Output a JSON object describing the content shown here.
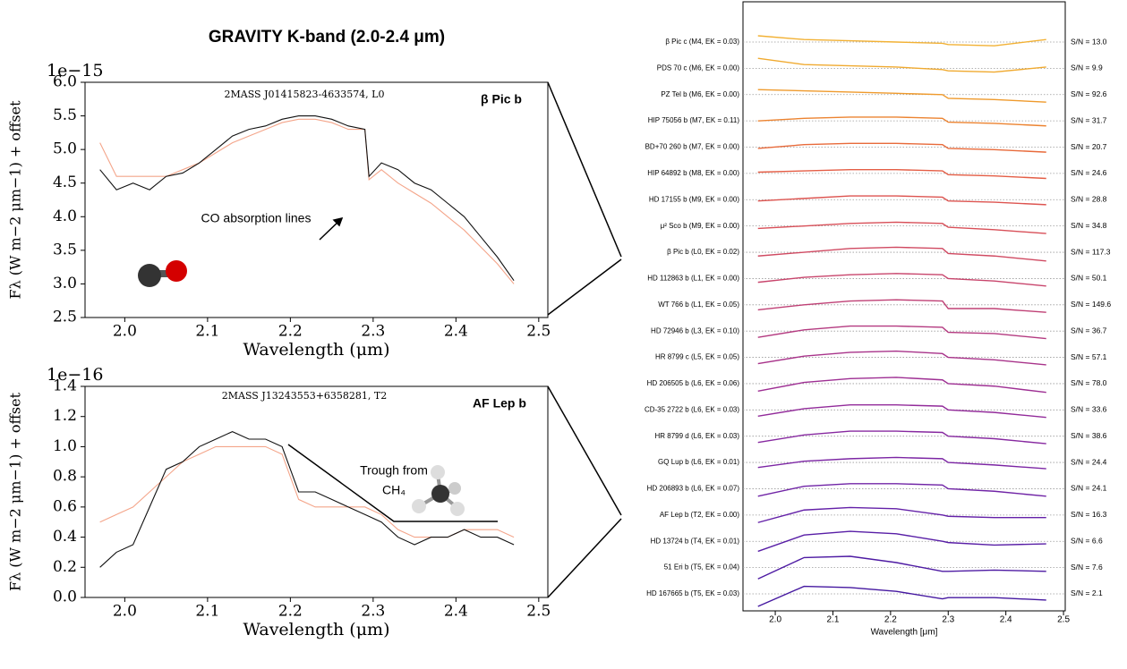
{
  "title": "GRAVITY K-band (2.0-2.4 μm)",
  "chart_data": [
    {
      "type": "line",
      "offset_label": "1e−15",
      "ylabel": "Fλ (W m−2 μm−1) + offset",
      "xlabel": "Wavelength (μm)",
      "object": "β Pic b",
      "subtitle": "2MASS J01415823-4633574, L0",
      "annotations": [
        "CO absorption lines"
      ],
      "xlim": [
        1.952,
        2.511
      ],
      "ylim": [
        2.5,
        6.0
      ],
      "xticks": [
        {
          "value": 2.0,
          "label": "2.0"
        },
        2.1,
        2.2,
        2.3,
        2.4,
        {
          "value": 2.5,
          "label": "2.5"
        }
      ],
      "yticks": [
        2.5,
        {
          "value": 3.0,
          "label": "3.0"
        },
        3.5,
        {
          "value": 4.0,
          "label": "4.0"
        },
        4.5,
        {
          "value": 5.0,
          "label": "5.0"
        },
        5.5,
        {
          "value": 6.0,
          "label": "6.0"
        }
      ],
      "x": [
        1.97,
        1.99,
        2.01,
        2.03,
        2.05,
        2.07,
        2.09,
        2.11,
        2.13,
        2.15,
        2.17,
        2.19,
        2.21,
        2.23,
        2.25,
        2.27,
        2.29,
        2.295,
        2.31,
        2.33,
        2.35,
        2.37,
        2.39,
        2.41,
        2.43,
        2.45,
        2.47
      ],
      "series": [
        {
          "color": "#f4a58a",
          "values": [
            5.1,
            4.6,
            4.6,
            4.6,
            4.6,
            4.7,
            4.8,
            4.95,
            5.1,
            5.2,
            5.3,
            5.4,
            5.45,
            5.45,
            5.4,
            5.3,
            5.3,
            4.55,
            4.7,
            4.5,
            4.35,
            4.2,
            4.0,
            3.8,
            3.55,
            3.3,
            3.0
          ]
        },
        {
          "color": "#111111",
          "values": [
            4.7,
            4.4,
            4.5,
            4.4,
            4.6,
            4.65,
            4.8,
            5.0,
            5.2,
            5.3,
            5.35,
            5.45,
            5.5,
            5.5,
            5.45,
            5.35,
            5.3,
            4.6,
            4.8,
            4.7,
            4.5,
            4.4,
            4.2,
            4.0,
            3.7,
            3.4,
            3.05
          ]
        }
      ]
    },
    {
      "type": "line",
      "offset_label": "1e−16",
      "ylabel": "Fλ (W m−2 μm−1) + offset",
      "xlabel": "Wavelength (μm)",
      "object": "AF Lep b",
      "subtitle": "2MASS J13243553+6358281, T2",
      "annotations": [
        "Trough from",
        "CH₄"
      ],
      "xlim": [
        1.952,
        2.511
      ],
      "ylim": [
        0.0,
        1.4
      ],
      "xticks": [
        {
          "value": 2.0,
          "label": "2.0"
        },
        2.1,
        2.2,
        2.3,
        2.4,
        {
          "value": 2.5,
          "label": "2.5"
        }
      ],
      "yticks": [
        {
          "value": 0.0,
          "label": "0.0"
        },
        0.2,
        0.4,
        0.6,
        0.8,
        {
          "value": 1.0,
          "label": "1.0"
        },
        1.2,
        1.4
      ],
      "x": [
        1.97,
        1.99,
        2.01,
        2.03,
        2.05,
        2.07,
        2.09,
        2.11,
        2.13,
        2.15,
        2.17,
        2.19,
        2.21,
        2.23,
        2.25,
        2.27,
        2.29,
        2.31,
        2.33,
        2.35,
        2.37,
        2.39,
        2.41,
        2.43,
        2.45,
        2.47
      ],
      "series": [
        {
          "color": "#f4a58a",
          "values": [
            0.5,
            0.55,
            0.6,
            0.7,
            0.8,
            0.9,
            0.95,
            1.0,
            1.0,
            1.0,
            1.0,
            0.95,
            0.65,
            0.6,
            0.6,
            0.6,
            0.6,
            0.55,
            0.45,
            0.4,
            0.4,
            0.4,
            0.45,
            0.45,
            0.45,
            0.4
          ]
        },
        {
          "color": "#111111",
          "values": [
            0.2,
            0.3,
            0.35,
            0.6,
            0.85,
            0.9,
            1.0,
            1.05,
            1.1,
            1.05,
            1.05,
            1.0,
            0.7,
            0.7,
            0.65,
            0.6,
            0.55,
            0.5,
            0.4,
            0.35,
            0.4,
            0.4,
            0.45,
            0.4,
            0.4,
            0.35
          ]
        }
      ]
    },
    {
      "type": "ridgeline",
      "xlabel": "Wavelength [μm]",
      "xlim": [
        1.944,
        2.503
      ],
      "xticks": [
        {
          "value": 2.0,
          "label": "2.0"
        },
        2.1,
        2.2,
        2.3,
        2.4,
        {
          "value": 2.5,
          "label": "2.5"
        }
      ],
      "x": [
        1.97,
        2.05,
        2.13,
        2.21,
        2.29,
        2.3,
        2.38,
        2.47
      ],
      "series": [
        {
          "name": "β Pic c (M4, EK = 0.03)",
          "snr": "S/N = 13.0",
          "color": "#f2b134",
          "values": [
            0.5,
            0.2,
            0.1,
            0.0,
            -0.1,
            -0.2,
            -0.3,
            0.2
          ]
        },
        {
          "name": "PDS 70 c (M6, EK = 0.00)",
          "snr": "S/N = 9.9",
          "color": "#f0aa30",
          "values": [
            0.8,
            0.3,
            0.2,
            0.1,
            -0.1,
            -0.2,
            -0.3,
            0.1
          ]
        },
        {
          "name": "PZ Tel b (M6, EK = 0.00)",
          "snr": "S/N = 92.6",
          "color": "#ef9a2c",
          "values": [
            0.4,
            0.3,
            0.2,
            0.1,
            0.0,
            -0.3,
            -0.4,
            -0.6
          ]
        },
        {
          "name": "HIP 75056 b (M7, EK = 0.11)",
          "snr": "S/N = 31.7",
          "color": "#ec8330",
          "values": [
            0.0,
            0.2,
            0.3,
            0.3,
            0.2,
            -0.1,
            -0.2,
            -0.4
          ]
        },
        {
          "name": "BD+70 260 b (M7, EK = 0.00)",
          "snr": "S/N = 20.7",
          "color": "#e86a3a",
          "values": [
            -0.1,
            0.2,
            0.3,
            0.3,
            0.2,
            -0.1,
            -0.2,
            -0.4
          ]
        },
        {
          "name": "HIP 64892 b (M8, EK = 0.00)",
          "snr": "S/N = 24.6",
          "color": "#e45d45",
          "values": [
            0.1,
            0.2,
            0.3,
            0.3,
            0.2,
            -0.1,
            -0.2,
            -0.4
          ]
        },
        {
          "name": "HD 17155 b (M9, EK = 0.00)",
          "snr": "S/N = 28.8",
          "color": "#dd5450",
          "values": [
            -0.1,
            0.1,
            0.3,
            0.3,
            0.2,
            -0.1,
            -0.2,
            -0.4
          ]
        },
        {
          "name": "μ² Sco b (M9, EK = 0.00)",
          "snr": "S/N = 34.8",
          "color": "#d84f58",
          "values": [
            -0.2,
            0.0,
            0.2,
            0.3,
            0.2,
            -0.1,
            -0.3,
            -0.6
          ]
        },
        {
          "name": "β Pic b (L0, EK = 0.02)",
          "snr": "S/N = 117.3",
          "color": "#d04a62",
          "values": [
            -0.3,
            0.0,
            0.3,
            0.4,
            0.3,
            -0.1,
            -0.3,
            -0.7
          ]
        },
        {
          "name": "HD 112863 b (L1, EK = 0.00)",
          "snr": "S/N = 50.1",
          "color": "#c8456c",
          "values": [
            -0.3,
            0.1,
            0.3,
            0.4,
            0.3,
            0.0,
            -0.2,
            -0.6
          ]
        },
        {
          "name": "WT 766 b (L1, EK = 0.05)",
          "snr": "S/N = 149.6",
          "color": "#bf4075",
          "values": [
            -0.4,
            0.0,
            0.3,
            0.4,
            0.3,
            -0.3,
            -0.3,
            -0.6
          ]
        },
        {
          "name": "HD 72946 b (L3, EK = 0.10)",
          "snr": "S/N = 36.7",
          "color": "#b43a80",
          "values": [
            -0.5,
            0.1,
            0.4,
            0.4,
            0.3,
            -0.1,
            -0.2,
            -0.6
          ]
        },
        {
          "name": "HR 8799 c (L5, EK = 0.05)",
          "snr": "S/N = 57.1",
          "color": "#a8338a",
          "values": [
            -0.5,
            0.1,
            0.4,
            0.5,
            0.3,
            0.0,
            -0.2,
            -0.6
          ]
        },
        {
          "name": "HD 206505 b (L6, EK = 0.06)",
          "snr": "S/N = 78.0",
          "color": "#9e2f93",
          "values": [
            -0.6,
            0.1,
            0.4,
            0.5,
            0.3,
            0.0,
            -0.2,
            -0.7
          ]
        },
        {
          "name": "CD-35 2722 b (L6, EK = 0.03)",
          "snr": "S/N = 33.6",
          "color": "#922b9a",
          "values": [
            -0.5,
            0.1,
            0.4,
            0.4,
            0.3,
            0.0,
            -0.2,
            -0.6
          ]
        },
        {
          "name": "HR 8799 d (L6, EK = 0.03)",
          "snr": "S/N = 38.6",
          "color": "#8729a0",
          "values": [
            -0.5,
            0.1,
            0.4,
            0.4,
            0.3,
            0.0,
            -0.2,
            -0.6
          ]
        },
        {
          "name": "GQ Lup b (L6, EK = 0.01)",
          "snr": "S/N = 24.4",
          "color": "#7c26a4",
          "values": [
            -0.4,
            0.1,
            0.3,
            0.4,
            0.3,
            0.0,
            -0.2,
            -0.5
          ]
        },
        {
          "name": "HD 206893 b (L6, EK = 0.07)",
          "snr": "S/N = 24.1",
          "color": "#7024a6",
          "values": [
            -0.6,
            0.2,
            0.4,
            0.4,
            0.3,
            0.0,
            -0.2,
            -0.6
          ]
        },
        {
          "name": "AF Lep b (T2, EK = 0.00)",
          "snr": "S/N = 16.3",
          "color": "#6421a8",
          "values": [
            -0.6,
            0.4,
            0.6,
            0.5,
            0.0,
            -0.1,
            -0.2,
            -0.2
          ]
        },
        {
          "name": "HD 13724 b (T4, EK = 0.01)",
          "snr": "S/N = 6.6",
          "color": "#581ea6",
          "values": [
            -0.8,
            0.5,
            0.8,
            0.6,
            0.0,
            -0.1,
            -0.3,
            -0.2
          ]
        },
        {
          "name": "51 Eri b (T5, EK = 0.04)",
          "snr": "S/N = 7.6",
          "color": "#4e1ba3",
          "values": [
            -0.9,
            0.8,
            0.9,
            0.4,
            -0.3,
            -0.3,
            -0.2,
            -0.3
          ]
        },
        {
          "name": "HD 167665 b (T5, EK = 0.03)",
          "snr": "S/N = 2.1",
          "color": "#4518a0",
          "values": [
            -1.0,
            0.6,
            0.5,
            0.2,
            -0.4,
            -0.3,
            -0.3,
            -0.5
          ]
        }
      ]
    }
  ]
}
